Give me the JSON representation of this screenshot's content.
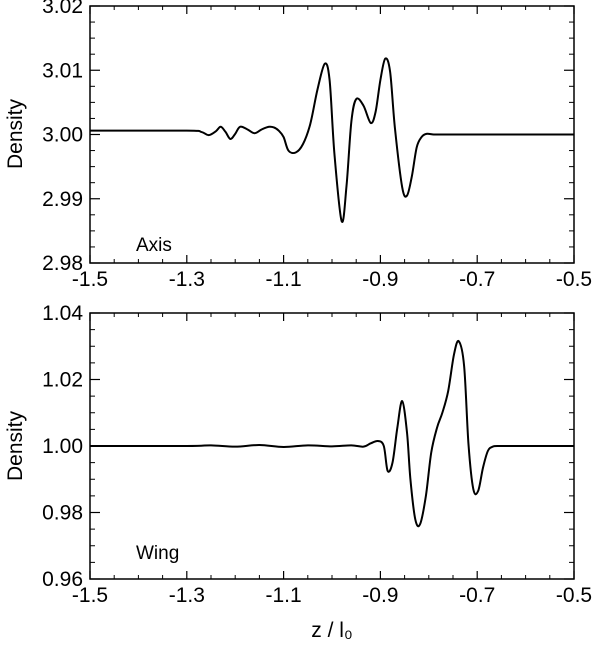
{
  "chart_data": [
    {
      "type": "line",
      "panel_label": "Axis",
      "ylabel": "Density",
      "xlabel": "",
      "xlim": [
        -1.5,
        -0.5
      ],
      "ylim": [
        2.98,
        3.02
      ],
      "xticks": [
        -1.5,
        -1.3,
        -1.1,
        -0.9,
        -0.7,
        -0.5
      ],
      "xtick_labels": [
        "-1.5",
        "-1.3",
        "-1.1",
        "-0.9",
        "-0.7",
        "-0.5"
      ],
      "yticks": [
        2.98,
        2.99,
        3.0,
        3.01,
        3.02
      ],
      "ytick_labels": [
        "2.98",
        "2.99",
        "3.00",
        "3.01",
        "3.02"
      ],
      "grid": false,
      "series": [
        {
          "x": [
            -1.5,
            -1.3,
            -1.27,
            -1.255,
            -1.24,
            -1.23,
            -1.22,
            -1.21,
            -1.2,
            -1.19,
            -1.175,
            -1.16,
            -1.145,
            -1.13,
            -1.12,
            -1.11,
            -1.1,
            -1.09,
            -1.075,
            -1.06,
            -1.045,
            -1.03,
            -1.015,
            -1.005,
            -0.995,
            -0.98,
            -0.97,
            -0.96,
            -0.95,
            -0.935,
            -0.92,
            -0.91,
            -0.9,
            -0.89,
            -0.88,
            -0.87,
            -0.855,
            -0.845,
            -0.835,
            -0.825,
            -0.815,
            -0.805,
            -0.79,
            -0.775,
            -0.75,
            -0.5
          ],
          "y": [
            3.0006,
            3.0006,
            3.0004,
            2.9999,
            3.0005,
            3.0012,
            3.0004,
            2.9993,
            3.0001,
            3.0012,
            3.0008,
            3.0002,
            3.0008,
            3.0012,
            3.0011,
            3.0006,
            2.9996,
            2.9975,
            2.9972,
            2.9985,
            3.0016,
            3.007,
            3.011,
            3.0085,
            2.997,
            2.9865,
            2.992,
            3.002,
            3.0055,
            3.0045,
            3.0018,
            3.0035,
            3.0085,
            3.0118,
            3.0098,
            3.001,
            2.9918,
            2.9905,
            2.9935,
            2.998,
            2.9996,
            3.0001,
            3.0,
            3.0,
            3.0,
            3.0
          ]
        }
      ]
    },
    {
      "type": "line",
      "panel_label": "Wing",
      "ylabel": "Density",
      "xlabel": "z / l₀",
      "xlim": [
        -1.5,
        -0.5
      ],
      "ylim": [
        0.96,
        1.04
      ],
      "xticks": [
        -1.5,
        -1.3,
        -1.1,
        -0.9,
        -0.7,
        -0.5
      ],
      "xtick_labels": [
        "-1.5",
        "-1.3",
        "-1.1",
        "-0.9",
        "-0.7",
        "-0.5"
      ],
      "yticks": [
        0.96,
        0.98,
        1.0,
        1.02,
        1.04
      ],
      "ytick_labels": [
        "0.96",
        "0.98",
        "1.00",
        "1.02",
        "1.04"
      ],
      "grid": false,
      "series": [
        {
          "x": [
            -1.5,
            -1.3,
            -1.25,
            -1.2,
            -1.15,
            -1.1,
            -1.05,
            -1.0,
            -0.96,
            -0.935,
            -0.92,
            -0.905,
            -0.893,
            -0.885,
            -0.875,
            -0.865,
            -0.855,
            -0.845,
            -0.838,
            -0.828,
            -0.818,
            -0.806,
            -0.795,
            -0.783,
            -0.772,
            -0.76,
            -0.748,
            -0.738,
            -0.727,
            -0.718,
            -0.708,
            -0.698,
            -0.688,
            -0.678,
            -0.668,
            -0.655,
            -0.64,
            -0.5
          ],
          "y": [
            1.0,
            1.0,
            1.0002,
            0.9998,
            1.0003,
            0.9997,
            1.0002,
            0.9999,
            1.0002,
            0.9998,
            1.0008,
            1.0015,
            1.0,
            0.9925,
            0.995,
            1.0055,
            1.0135,
            1.004,
            0.99,
            0.978,
            0.9765,
            0.985,
            0.998,
            1.0055,
            1.01,
            1.0165,
            1.0275,
            1.0315,
            1.024,
            1.0005,
            0.987,
            0.9865,
            0.9935,
            0.9985,
            0.9998,
            1.0,
            1.0,
            1.0
          ]
        }
      ]
    }
  ]
}
